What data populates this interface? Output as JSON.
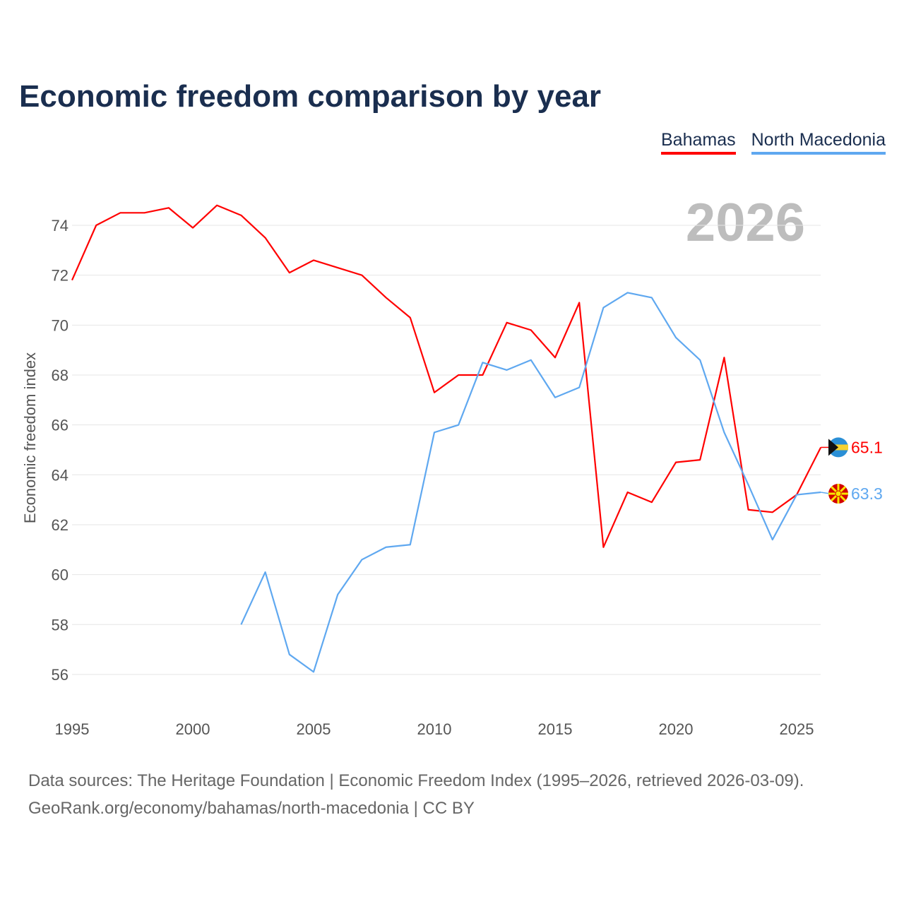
{
  "chart_data": {
    "type": "line",
    "title": "Economic freedom comparison by year",
    "xlabel": "",
    "ylabel": "Economic freedom index",
    "xlim": [
      1995,
      2026
    ],
    "ylim": [
      55,
      75
    ],
    "xticks": [
      1995,
      2000,
      2005,
      2010,
      2015,
      2020,
      2025
    ],
    "yticks": [
      56,
      58,
      60,
      62,
      64,
      66,
      68,
      70,
      72,
      74
    ],
    "grid": true,
    "legend_position": "top-right",
    "current_year": "2026",
    "series": [
      {
        "name": "Bahamas",
        "color": "#ff0000",
        "end_label": "65.1",
        "x": [
          1995,
          1996,
          1997,
          1998,
          1999,
          2000,
          2001,
          2002,
          2003,
          2004,
          2005,
          2006,
          2007,
          2008,
          2009,
          2010,
          2011,
          2012,
          2013,
          2014,
          2015,
          2016,
          2017,
          2018,
          2019,
          2020,
          2021,
          2022,
          2023,
          2024,
          2025,
          2026
        ],
        "values": [
          71.8,
          74.0,
          74.5,
          74.5,
          74.7,
          73.9,
          74.8,
          74.4,
          73.5,
          72.1,
          72.6,
          72.3,
          72.0,
          71.1,
          70.3,
          67.3,
          68.0,
          68.0,
          70.1,
          69.8,
          68.7,
          70.9,
          61.1,
          63.3,
          62.9,
          64.5,
          64.6,
          68.7,
          62.6,
          62.5,
          63.2,
          65.1
        ]
      },
      {
        "name": "North Macedonia",
        "color": "#5fa8f0",
        "end_label": "63.3",
        "x": [
          2002,
          2003,
          2004,
          2005,
          2006,
          2007,
          2008,
          2009,
          2010,
          2011,
          2012,
          2013,
          2014,
          2015,
          2016,
          2017,
          2018,
          2019,
          2020,
          2021,
          2022,
          2023,
          2024,
          2025,
          2026
        ],
        "values": [
          58.0,
          60.1,
          56.8,
          56.1,
          59.2,
          60.6,
          61.1,
          61.2,
          65.7,
          66.0,
          68.5,
          68.2,
          68.6,
          67.1,
          67.5,
          70.7,
          71.3,
          71.1,
          69.5,
          68.6,
          65.7,
          63.6,
          61.4,
          63.2,
          63.3
        ]
      }
    ]
  },
  "footer": {
    "line1": "Data sources: The Heritage Foundation | Economic Freedom Index (1995–2026, retrieved 2026-03-09).",
    "line2": "GeoRank.org/economy/bahamas/north-macedonia | CC BY"
  }
}
